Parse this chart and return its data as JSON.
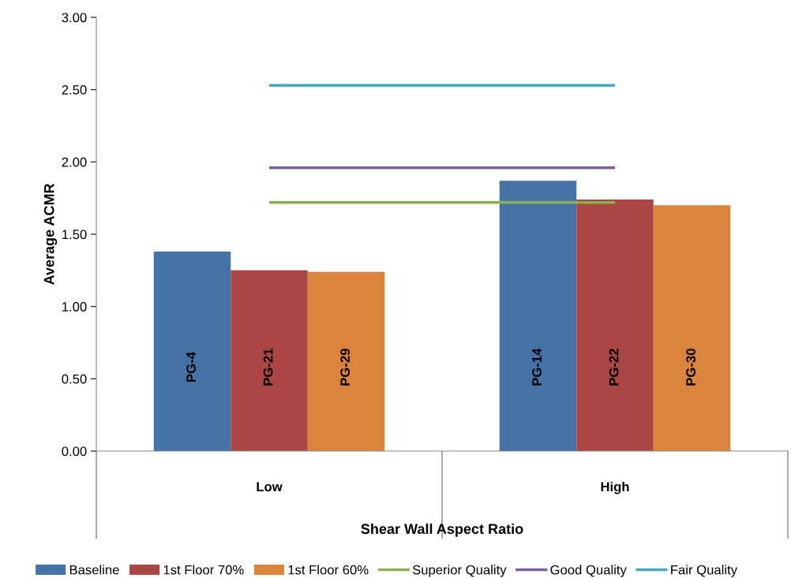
{
  "chart_data": {
    "type": "bar",
    "xlabel": "Shear Wall Aspect Ratio",
    "ylabel": "Average ACMR",
    "categories": [
      "Low",
      "High"
    ],
    "series": [
      {
        "name": "Baseline",
        "color": "#4572a7",
        "values": [
          1.38,
          1.87
        ],
        "value_labels": [
          "PG-4",
          "PG-14"
        ]
      },
      {
        "name": "1st Floor 70%",
        "color": "#aa4643",
        "values": [
          1.25,
          1.74
        ],
        "value_labels": [
          "PG-21",
          "PG-22"
        ]
      },
      {
        "name": "1st Floor 60%",
        "color": "#db843d",
        "values": [
          1.24,
          1.7
        ],
        "value_labels": [
          "PG-29",
          "PG-30"
        ]
      },
      {
        "name": "Superior Quality",
        "type": "line",
        "color": "#8db04f",
        "values": [
          1.72,
          1.72
        ]
      },
      {
        "name": "Good Quality",
        "type": "line",
        "color": "#7d60a0",
        "values": [
          1.96,
          1.96
        ]
      },
      {
        "name": "Fair Quality",
        "type": "line",
        "color": "#46aac4",
        "values": [
          2.53,
          2.53
        ]
      }
    ],
    "ylim": [
      0,
      3
    ],
    "yticks": [
      {
        "value": 0,
        "label": "0.00"
      },
      {
        "value": 0.5,
        "label": "0.50"
      },
      {
        "value": 1,
        "label": "1.00"
      },
      {
        "value": 1.5,
        "label": "1.50"
      },
      {
        "value": 2,
        "label": "2.00"
      },
      {
        "value": 2.5,
        "label": "2.50"
      },
      {
        "value": 3,
        "label": "3.00"
      }
    ],
    "grid": false,
    "legend": "bottom"
  }
}
